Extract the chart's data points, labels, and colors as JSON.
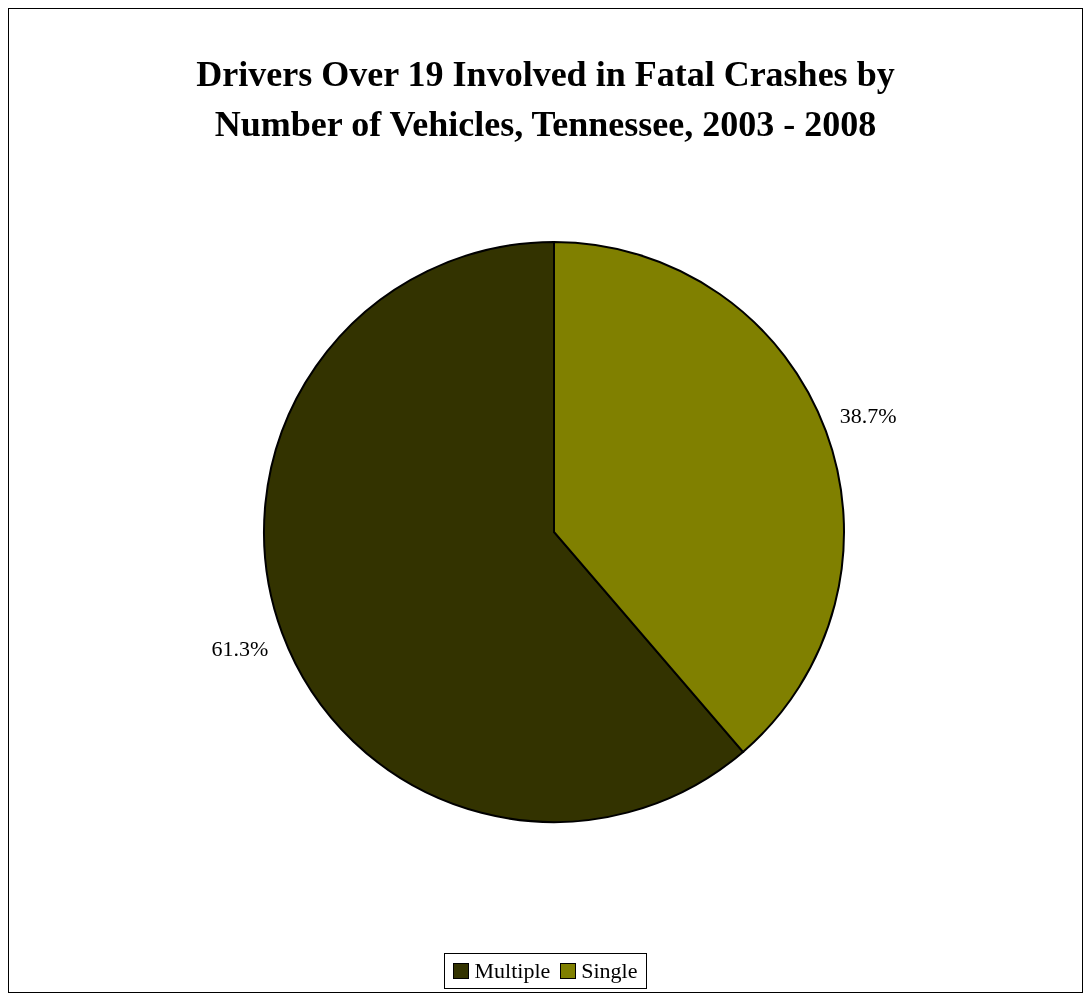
{
  "chart_data": {
    "type": "pie",
    "title": "Drivers Over 19 Involved in Fatal Crashes by Number of Vehicles, Tennessee, 2003 - 2008",
    "categories": [
      "Multiple",
      "Single"
    ],
    "values": [
      61.3,
      38.7
    ],
    "colors": [
      "#333300",
      "#808000"
    ],
    "value_labels": [
      "61.3%",
      "38.7%"
    ],
    "legend": "bottom"
  }
}
